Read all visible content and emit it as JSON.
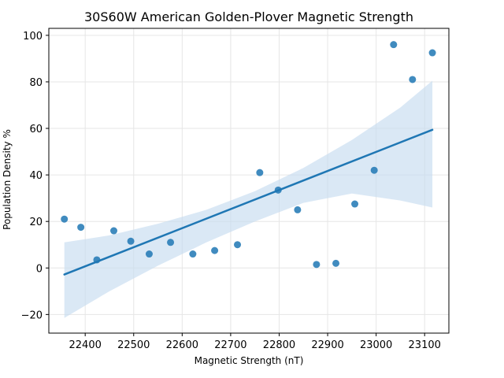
{
  "chart_data": {
    "type": "scatter",
    "title": "30S60W American Golden-Plover Magnetic Strength",
    "xlabel": "Magnetic Strength (nT)",
    "ylabel": "Population Density %",
    "xlim": [
      22325,
      23150
    ],
    "ylim": [
      -28,
      103
    ],
    "xticks": [
      22400,
      22500,
      22600,
      22700,
      22800,
      22900,
      23000,
      23100
    ],
    "yticks": [
      -20,
      0,
      20,
      40,
      60,
      80,
      100
    ],
    "grid": true,
    "points": [
      {
        "x": 22357,
        "y": 21
      },
      {
        "x": 22391,
        "y": 17.5
      },
      {
        "x": 22424,
        "y": 3.5
      },
      {
        "x": 22459,
        "y": 16
      },
      {
        "x": 22494,
        "y": 11.5
      },
      {
        "x": 22532,
        "y": 6
      },
      {
        "x": 22576,
        "y": 11
      },
      {
        "x": 22622,
        "y": 6
      },
      {
        "x": 22667,
        "y": 7.5
      },
      {
        "x": 22714,
        "y": 10
      },
      {
        "x": 22760,
        "y": 41
      },
      {
        "x": 22798,
        "y": 33.5
      },
      {
        "x": 22838,
        "y": 25
      },
      {
        "x": 22877,
        "y": 1.5
      },
      {
        "x": 22917,
        "y": 2
      },
      {
        "x": 22956,
        "y": 27.5
      },
      {
        "x": 22996,
        "y": 42
      },
      {
        "x": 23036,
        "y": 96
      },
      {
        "x": 23075,
        "y": 81
      },
      {
        "x": 23116,
        "y": 92.5
      }
    ],
    "regression": {
      "x": [
        22357,
        23116
      ],
      "y": [
        -2.8,
        59.4
      ]
    },
    "confidence_band": {
      "x": [
        22357,
        22450,
        22550,
        22650,
        22750,
        22850,
        22950,
        23050,
        23116
      ],
      "upper": [
        11,
        14,
        19,
        25,
        33,
        43,
        55,
        69,
        80.5
      ],
      "lower": [
        -21.5,
        -10,
        1,
        11,
        20,
        28,
        32,
        29,
        26
      ]
    },
    "colors": {
      "points": "#1f77b4",
      "line": "#1f77b4",
      "band": "#c6dbef",
      "grid": "#e6e6e6"
    }
  }
}
